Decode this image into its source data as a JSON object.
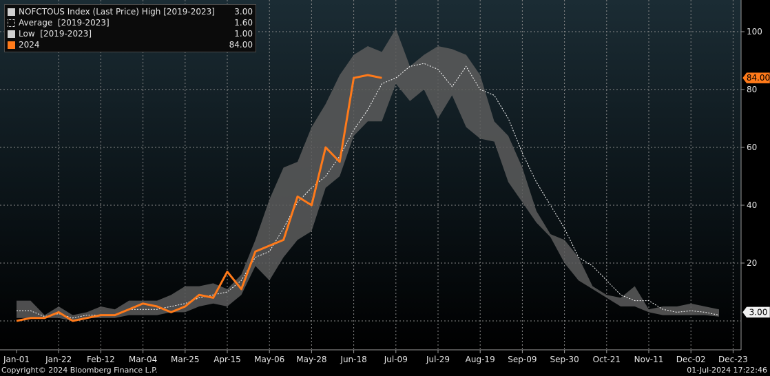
{
  "legend": {
    "items": [
      {
        "label": "NOFCTOUS Index (Last Price) High [2019-2023]",
        "value": "3.00",
        "swatch": "#d0d0d0",
        "style": "solid"
      },
      {
        "label": "Average  [2019-2023]",
        "value": "1.60",
        "swatch": "#ffffff",
        "style": "dotted"
      },
      {
        "label": "Low  [2019-2023]",
        "value": "1.00",
        "swatch": "#d0d0d0",
        "style": "solid"
      },
      {
        "label": "2024",
        "value": "84.00",
        "swatch": "#ff7a1a",
        "style": "solid"
      }
    ]
  },
  "footer": {
    "copyright": "Copyright© 2024 Bloomberg Finance L.P.",
    "timestamp": "01-Jul-2024 17:22:46"
  },
  "colors": {
    "band": "#5c5c5c",
    "average": "#ffffff",
    "series_2024": "#ff7a1a",
    "grid": "#8a8a8a",
    "axis_text": "#e6e6e6"
  },
  "chart_data": {
    "type": "area",
    "x_labels": [
      "Jan-01",
      "Jan-22",
      "Feb-12",
      "Mar-04",
      "Mar-25",
      "Apr-15",
      "May-06",
      "May-28",
      "Jun-18",
      "Jul-09",
      "Jul-29",
      "Aug-19",
      "Sep-09",
      "Sep-30",
      "Oct-21",
      "Nov-11",
      "Dec-02",
      "Dec-23"
    ],
    "y_ticks": [
      20,
      40,
      60,
      80,
      100
    ],
    "ylim": [
      -3,
      110
    ],
    "grid": true,
    "legend_position": "top-left",
    "last_value_labels": [
      {
        "text": "84.00",
        "value": 84,
        "series": "2024"
      },
      {
        "text": "3.00",
        "value": 3,
        "series": "High"
      }
    ],
    "band_high": [
      7,
      7,
      2,
      5,
      2,
      3,
      5,
      4,
      7,
      7,
      7,
      9,
      12,
      12,
      13,
      11,
      16,
      28,
      42,
      53,
      55,
      67,
      75,
      85,
      92,
      95,
      93,
      101,
      88,
      92,
      95,
      94,
      92,
      85,
      69,
      64,
      53,
      38,
      30,
      28,
      22,
      12,
      9,
      8,
      12,
      4,
      5,
      5,
      6,
      5,
      4
    ],
    "average": [
      3.5,
      3.5,
      1.5,
      2.5,
      1,
      2,
      2,
      2,
      4,
      4,
      4,
      5,
      6,
      8,
      9,
      10,
      14,
      22,
      24,
      32,
      41,
      46,
      50,
      57,
      66,
      73,
      82,
      84,
      88,
      89,
      87,
      81,
      88,
      80,
      78,
      70,
      58,
      48,
      40,
      32,
      22,
      19,
      14,
      9,
      7,
      7,
      4,
      3,
      3.5,
      3,
      2
    ],
    "band_low": [
      1,
      1,
      1,
      1,
      0,
      1,
      1,
      1,
      2,
      2,
      2,
      3,
      3,
      5,
      6,
      5,
      9,
      19,
      14,
      22,
      28,
      31,
      46,
      50,
      64,
      69,
      69,
      82,
      76,
      80,
      70,
      78,
      67,
      63,
      62,
      48,
      41,
      34,
      29,
      20,
      14,
      11,
      8,
      5,
      5,
      3,
      2,
      2,
      2,
      2,
      1.5
    ],
    "series_2024": {
      "name": "2024",
      "values": [
        0,
        1,
        1,
        3,
        0,
        1,
        2,
        2,
        4,
        6,
        5,
        3,
        5,
        9,
        8,
        17,
        11,
        24,
        26,
        28,
        43,
        40,
        60,
        55,
        84,
        85,
        84
      ]
    }
  }
}
